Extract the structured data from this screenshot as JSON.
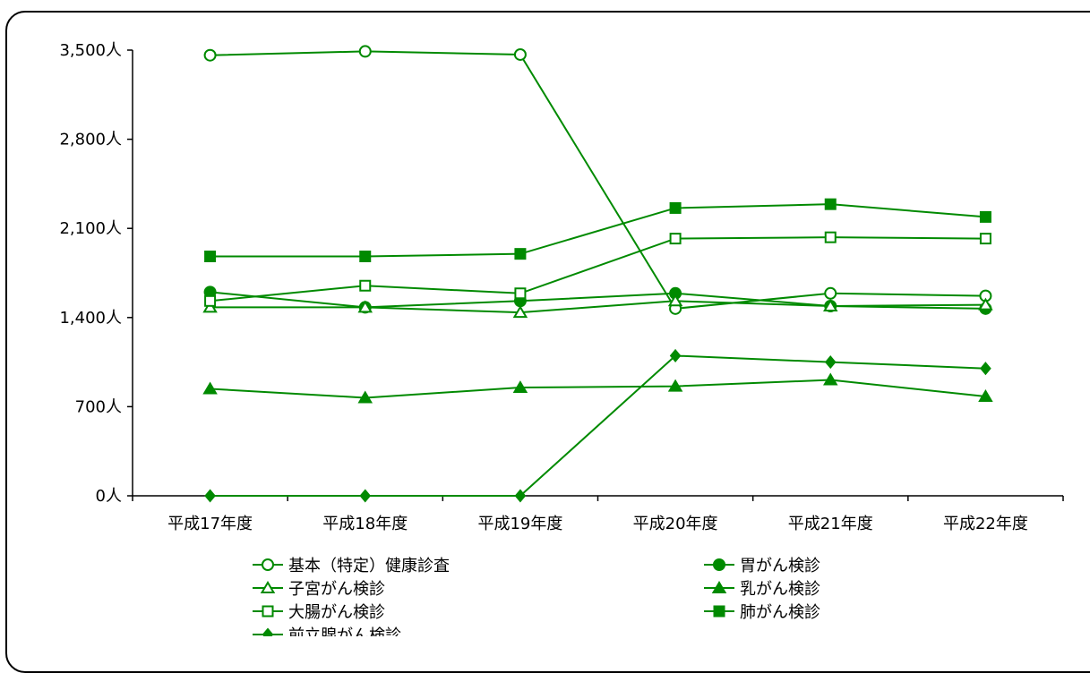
{
  "chart_data": {
    "type": "line",
    "categories": [
      "平成17年度",
      "平成18年度",
      "平成19年度",
      "平成20年度",
      "平成21年度",
      "平成22年度"
    ],
    "ylim": [
      0,
      3500
    ],
    "yticks": [
      0,
      700,
      1400,
      2100,
      2800,
      3500
    ],
    "ytick_labels": [
      "0人",
      "700人",
      "1,400人",
      "2,100人",
      "2,800人",
      "3,500人"
    ],
    "grid": false,
    "legend_position": "bottom",
    "line_color": "#008a00",
    "series": [
      {
        "name": "基本（特定）健康診査",
        "marker": "circle-open",
        "values": [
          3460,
          3490,
          3465,
          1470,
          1590,
          1570
        ]
      },
      {
        "name": "胃がん検診",
        "marker": "circle-filled",
        "values": [
          1600,
          1480,
          1530,
          1590,
          1490,
          1470
        ]
      },
      {
        "name": "子宮がん検診",
        "marker": "triangle-open",
        "values": [
          1480,
          1480,
          1440,
          1530,
          1490,
          1500
        ]
      },
      {
        "name": "乳がん検診",
        "marker": "triangle-filled",
        "values": [
          840,
          770,
          850,
          860,
          910,
          780
        ]
      },
      {
        "name": "大腸がん検診",
        "marker": "square-open",
        "values": [
          1530,
          1650,
          1590,
          2020,
          2030,
          2020
        ]
      },
      {
        "name": "肺がん検診",
        "marker": "square-filled",
        "values": [
          1880,
          1880,
          1900,
          2260,
          2290,
          2190
        ]
      },
      {
        "name": "前立腺がん検診",
        "marker": "diamond-filled",
        "values": [
          0,
          0,
          0,
          1100,
          1050,
          1000
        ]
      }
    ]
  }
}
